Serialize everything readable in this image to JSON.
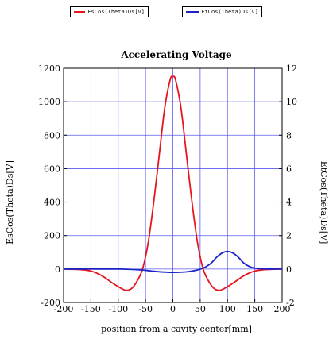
{
  "legend": {
    "series1_label": "EsCos(Theta)Ds[V]",
    "series2_label": "EtCos(Theta)Ds[V]"
  },
  "chart_data": {
    "type": "line",
    "title": "Accelerating Voltage",
    "xlabel": "position from a cavity center[mm]",
    "ylabel": "EsCos(Theta)Ds[V]",
    "y2label": "EtCos(Theta)Ds[V]",
    "xlim": [
      -200,
      200
    ],
    "ylim": [
      -200,
      1200
    ],
    "y2lim": [
      -2,
      12
    ],
    "xticks": [
      "-200",
      "-150",
      "-100",
      "-50",
      "0",
      "50",
      "100",
      "150",
      "200"
    ],
    "yticks": [
      "-200",
      "0",
      "200",
      "400",
      "600",
      "800",
      "1000",
      "1200"
    ],
    "y2ticks": [
      "-2",
      "0",
      "2",
      "4",
      "6",
      "8",
      "10",
      "12"
    ],
    "grid": true,
    "legend_position": "top",
    "colors": {
      "series1": "#e8141e",
      "series2": "#1a22c8",
      "grid": "#5a5af0"
    },
    "series": [
      {
        "name": "EsCos(Theta)Ds[V]",
        "axis": "left",
        "x": [
          -200,
          -170,
          -150,
          -130,
          -110,
          -95,
          -85,
          -75,
          -65,
          -55,
          -45,
          -35,
          -25,
          -15,
          -5,
          0,
          5,
          15,
          25,
          35,
          45,
          55,
          65,
          75,
          85,
          95,
          110,
          130,
          150,
          170,
          200
        ],
        "y": [
          0,
          -3,
          -12,
          -40,
          -85,
          -115,
          -128,
          -115,
          -70,
          5,
          160,
          400,
          680,
          960,
          1130,
          1150,
          1130,
          960,
          680,
          400,
          160,
          5,
          -70,
          -115,
          -128,
          -115,
          -85,
          -40,
          -12,
          -3,
          0
        ]
      },
      {
        "name": "EtCos(Theta)Ds[V]",
        "axis": "right",
        "x": [
          -200,
          -150,
          -100,
          -60,
          -30,
          0,
          30,
          55,
          70,
          80,
          90,
          100,
          110,
          120,
          130,
          140,
          150,
          165,
          180,
          200
        ],
        "y": [
          0,
          0,
          0,
          -0.05,
          -0.15,
          -0.2,
          -0.15,
          0.05,
          0.35,
          0.7,
          0.95,
          1.05,
          0.95,
          0.7,
          0.35,
          0.15,
          0.05,
          0.01,
          0,
          0
        ]
      }
    ]
  }
}
